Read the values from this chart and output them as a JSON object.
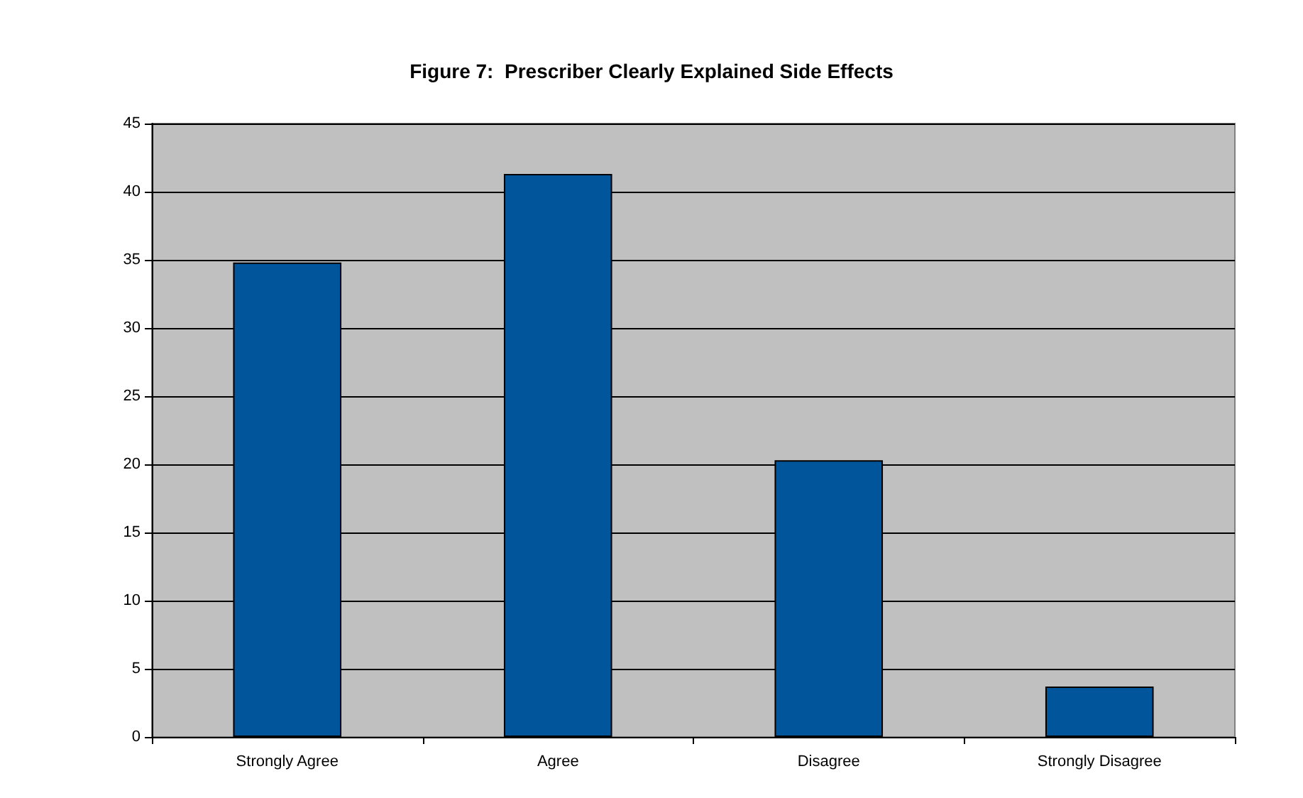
{
  "chart_data": {
    "type": "bar",
    "title": "Figure 7:  Prescriber Clearly Explained Side Effects",
    "categories": [
      "Strongly Agree",
      "Agree",
      "Disagree",
      "Strongly Disagree"
    ],
    "values": [
      34.8,
      41.3,
      20.3,
      3.7
    ],
    "color": "#00559b",
    "ylim": [
      0,
      45
    ],
    "yticks": [
      0,
      5,
      10,
      15,
      20,
      25,
      30,
      35,
      40,
      45
    ],
    "grid": "y"
  }
}
